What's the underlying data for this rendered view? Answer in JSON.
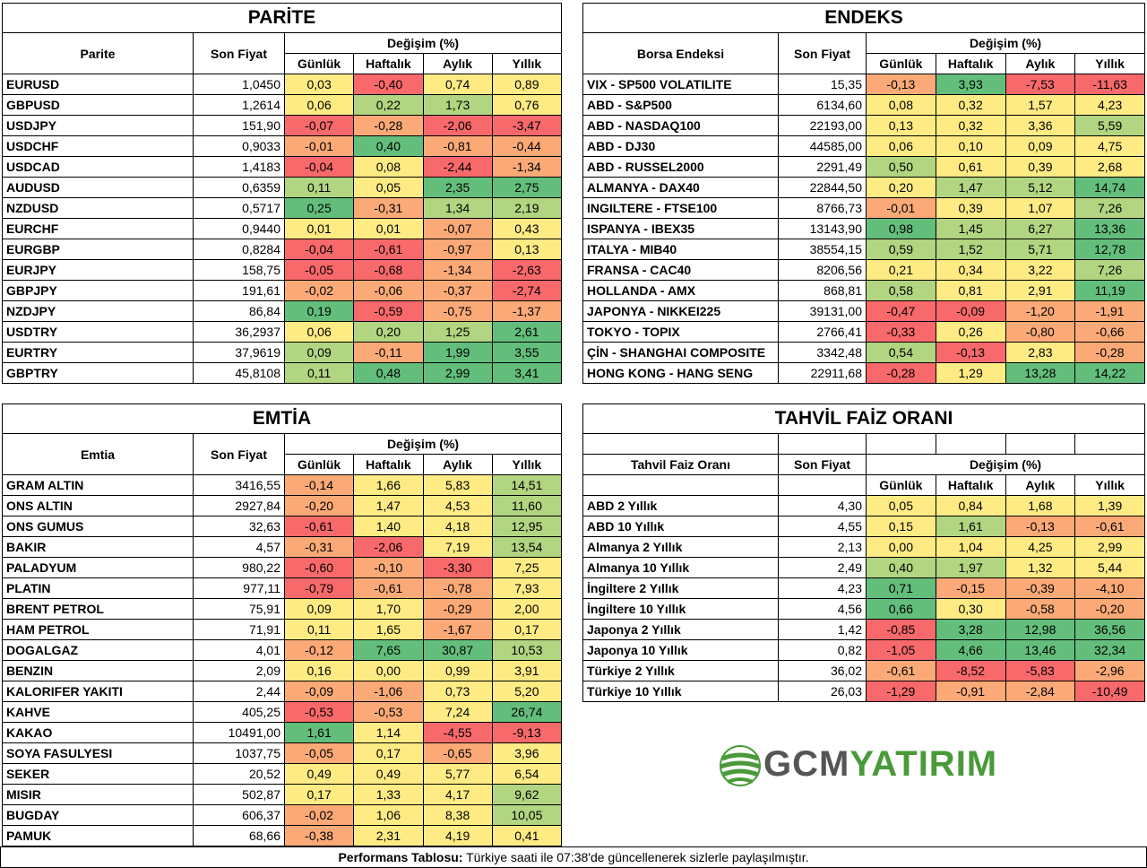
{
  "parite": {
    "title": "PARİTE",
    "col_name": "Parite",
    "col_price": "Son Fiyat",
    "col_change": "Değişim (%)",
    "sub": [
      "Günlük",
      "Haftalık",
      "Aylık",
      "Yıllık"
    ],
    "rows": [
      {
        "name": "EURUSD",
        "price": "1,0450",
        "vals": [
          "0,03",
          "-0,40",
          "0,74",
          "0,89"
        ]
      },
      {
        "name": "GBPUSD",
        "price": "1,2614",
        "vals": [
          "0,06",
          "0,22",
          "1,73",
          "0,76"
        ]
      },
      {
        "name": "USDJPY",
        "price": "151,90",
        "vals": [
          "-0,07",
          "-0,28",
          "-2,06",
          "-3,47"
        ]
      },
      {
        "name": "USDCHF",
        "price": "0,9033",
        "vals": [
          "-0,01",
          "0,40",
          "-0,81",
          "-0,44"
        ]
      },
      {
        "name": "USDCAD",
        "price": "1,4183",
        "vals": [
          "-0,04",
          "0,08",
          "-2,44",
          "-1,34"
        ]
      },
      {
        "name": "AUDUSD",
        "price": "0,6359",
        "vals": [
          "0,11",
          "0,05",
          "2,35",
          "2,75"
        ]
      },
      {
        "name": "NZDUSD",
        "price": "0,5717",
        "vals": [
          "0,25",
          "-0,31",
          "1,34",
          "2,19"
        ]
      },
      {
        "name": "EURCHF",
        "price": "0,9440",
        "vals": [
          "0,01",
          "0,01",
          "-0,07",
          "0,43"
        ]
      },
      {
        "name": "EURGBP",
        "price": "0,8284",
        "vals": [
          "-0,04",
          "-0,61",
          "-0,97",
          "0,13"
        ]
      },
      {
        "name": "EURJPY",
        "price": "158,75",
        "vals": [
          "-0,05",
          "-0,68",
          "-1,34",
          "-2,63"
        ]
      },
      {
        "name": "GBPJPY",
        "price": "191,61",
        "vals": [
          "-0,02",
          "-0,06",
          "-0,37",
          "-2,74"
        ]
      },
      {
        "name": "NZDJPY",
        "price": "86,84",
        "vals": [
          "0,19",
          "-0,59",
          "-0,75",
          "-1,37"
        ]
      },
      {
        "name": "USDTRY",
        "price": "36,2937",
        "vals": [
          "0,06",
          "0,20",
          "1,25",
          "2,61"
        ]
      },
      {
        "name": "EURTRY",
        "price": "37,9619",
        "vals": [
          "0,09",
          "-0,11",
          "1,99",
          "3,55"
        ]
      },
      {
        "name": "GBPTRY",
        "price": "45,8108",
        "vals": [
          "0,11",
          "0,48",
          "2,99",
          "3,41"
        ]
      }
    ]
  },
  "endeks": {
    "title": "ENDEKS",
    "col_name": "Borsa Endeksi",
    "col_price": "Son Fiyat",
    "col_change": "Değişim (%)",
    "sub": [
      "Günlük",
      "Haftalık",
      "Aylık",
      "Yıllık"
    ],
    "rows": [
      {
        "name": "VIX  - SP500 VOLATILITE",
        "price": "15,35",
        "vals": [
          "-0,13",
          "3,93",
          "-7,53",
          "-11,63"
        ]
      },
      {
        "name": "ABD - S&P500",
        "price": "6134,60",
        "vals": [
          "0,08",
          "0,32",
          "1,57",
          "4,23"
        ]
      },
      {
        "name": "ABD - NASDAQ100",
        "price": "22193,00",
        "vals": [
          "0,13",
          "0,32",
          "3,36",
          "5,59"
        ]
      },
      {
        "name": "ABD - DJ30",
        "price": "44585,00",
        "vals": [
          "0,06",
          "0,10",
          "0,09",
          "4,75"
        ]
      },
      {
        "name": "ABD - RUSSEL2000",
        "price": "2291,49",
        "vals": [
          "0,50",
          "0,61",
          "0,39",
          "2,68"
        ]
      },
      {
        "name": "ALMANYA - DAX40",
        "price": "22844,50",
        "vals": [
          "0,20",
          "1,47",
          "5,12",
          "14,74"
        ]
      },
      {
        "name": "INGILTERE - FTSE100",
        "price": "8766,73",
        "vals": [
          "-0,01",
          "0,39",
          "1,07",
          "7,26"
        ]
      },
      {
        "name": "ISPANYA - IBEX35",
        "price": "13143,90",
        "vals": [
          "0,98",
          "1,45",
          "6,27",
          "13,36"
        ]
      },
      {
        "name": "ITALYA - MIB40",
        "price": "38554,15",
        "vals": [
          "0,59",
          "1,52",
          "5,71",
          "12,78"
        ]
      },
      {
        "name": "FRANSA - CAC40",
        "price": "8206,56",
        "vals": [
          "0,21",
          "0,34",
          "3,22",
          "7,26"
        ]
      },
      {
        "name": "HOLLANDA - AMX",
        "price": "868,81",
        "vals": [
          "0,58",
          "0,81",
          "2,91",
          "11,19"
        ]
      },
      {
        "name": "JAPONYA - NIKKEI225",
        "price": "39131,00",
        "vals": [
          "-0,47",
          "-0,09",
          "-1,20",
          "-1,91"
        ]
      },
      {
        "name": "TOKYO - TOPIX",
        "price": "2766,41",
        "vals": [
          "-0,33",
          "0,26",
          "-0,80",
          "-0,66"
        ]
      },
      {
        "name": "ÇİN - SHANGHAI COMPOSITE",
        "price": "3342,48",
        "vals": [
          "0,54",
          "-0,13",
          "2,83",
          "-0,28"
        ]
      },
      {
        "name": "HONG KONG - HANG SENG",
        "price": "22911,68",
        "vals": [
          "-0,28",
          "1,29",
          "13,28",
          "14,22"
        ]
      }
    ]
  },
  "emtia": {
    "title": "EMTİA",
    "col_name": "Emtia",
    "col_price": "Son Fiyat",
    "col_change": "Değişim (%)",
    "sub": [
      "Günlük",
      "Haftalık",
      "Aylık",
      "Yıllık"
    ],
    "rows": [
      {
        "name": "GRAM ALTIN",
        "price": "3416,55",
        "vals": [
          "-0,14",
          "1,66",
          "5,83",
          "14,51"
        ]
      },
      {
        "name": "ONS ALTIN",
        "price": "2927,84",
        "vals": [
          "-0,20",
          "1,47",
          "4,53",
          "11,60"
        ]
      },
      {
        "name": "ONS GUMUS",
        "price": "32,63",
        "vals": [
          "-0,61",
          "1,40",
          "4,18",
          "12,95"
        ]
      },
      {
        "name": "BAKIR",
        "price": "4,57",
        "vals": [
          "-0,31",
          "-2,06",
          "7,19",
          "13,54"
        ]
      },
      {
        "name": "PALADYUM",
        "price": "980,22",
        "vals": [
          "-0,60",
          "-0,10",
          "-3,30",
          "7,25"
        ]
      },
      {
        "name": "PLATIN",
        "price": "977,11",
        "vals": [
          "-0,79",
          "-0,61",
          "-0,78",
          "7,93"
        ]
      },
      {
        "name": "BRENT PETROL",
        "price": "75,91",
        "vals": [
          "0,09",
          "1,70",
          "-0,29",
          "2,00"
        ]
      },
      {
        "name": "HAM PETROL",
        "price": "71,91",
        "vals": [
          "0,11",
          "1,65",
          "-1,67",
          "0,17"
        ]
      },
      {
        "name": "DOGALGAZ",
        "price": "4,01",
        "vals": [
          "-0,12",
          "7,65",
          "30,87",
          "10,53"
        ]
      },
      {
        "name": "BENZIN",
        "price": "2,09",
        "vals": [
          "0,16",
          "0,00",
          "0,99",
          "3,91"
        ]
      },
      {
        "name": "KALORIFER YAKITI",
        "price": "2,44",
        "vals": [
          "-0,09",
          "-1,06",
          "0,73",
          "5,20"
        ]
      },
      {
        "name": "KAHVE",
        "price": "405,25",
        "vals": [
          "-0,53",
          "-0,53",
          "7,24",
          "26,74"
        ]
      },
      {
        "name": "KAKAO",
        "price": "10491,00",
        "vals": [
          "1,61",
          "1,14",
          "-4,55",
          "-9,13"
        ]
      },
      {
        "name": "SOYA FASULYESI",
        "price": "1037,75",
        "vals": [
          "-0,05",
          "0,17",
          "-0,65",
          "3,96"
        ]
      },
      {
        "name": "SEKER",
        "price": "20,52",
        "vals": [
          "0,49",
          "0,49",
          "5,77",
          "6,54"
        ]
      },
      {
        "name": "MISIR",
        "price": "502,87",
        "vals": [
          "0,17",
          "1,33",
          "4,17",
          "9,62"
        ]
      },
      {
        "name": "BUGDAY",
        "price": "606,37",
        "vals": [
          "-0,02",
          "1,06",
          "8,38",
          "10,05"
        ]
      },
      {
        "name": "PAMUK",
        "price": "68,66",
        "vals": [
          "-0,38",
          "2,31",
          "4,19",
          "0,41"
        ]
      }
    ]
  },
  "tahvil": {
    "title": "TAHVİL FAİZ ORANI",
    "col_name": "Tahvil Faiz Oranı",
    "col_price": "Son Fiyat",
    "col_change": "Değişim (%)",
    "sub": [
      "Günlük",
      "Haftalık",
      "Aylık",
      "Yıllık"
    ],
    "rows": [
      {
        "name": "ABD 2 Yıllık",
        "price": "4,30",
        "vals": [
          "0,05",
          "0,84",
          "1,68",
          "1,39"
        ]
      },
      {
        "name": "ABD 10 Yıllık",
        "price": "4,55",
        "vals": [
          "0,15",
          "1,61",
          "-0,13",
          "-0,61"
        ]
      },
      {
        "name": "Almanya 2 Yıllık",
        "price": "2,13",
        "vals": [
          "0,00",
          "1,04",
          "4,25",
          "2,99"
        ]
      },
      {
        "name": "Almanya 10 Yıllık",
        "price": "2,49",
        "vals": [
          "0,40",
          "1,97",
          "1,32",
          "5,44"
        ]
      },
      {
        "name": "İngiltere 2 Yıllık",
        "price": "4,23",
        "vals": [
          "0,71",
          "-0,15",
          "-0,39",
          "-4,10"
        ]
      },
      {
        "name": "İngiltere 10 Yıllık",
        "price": "4,56",
        "vals": [
          "0,66",
          "0,30",
          "-0,58",
          "-0,20"
        ]
      },
      {
        "name": "Japonya 2 Yıllık",
        "price": "1,42",
        "vals": [
          "-0,85",
          "3,28",
          "12,98",
          "36,56"
        ]
      },
      {
        "name": "Japonya 10 Yıllık",
        "price": "0,82",
        "vals": [
          "-1,05",
          "4,66",
          "13,46",
          "32,34"
        ]
      },
      {
        "name": "Türkiye 2 Yıllık",
        "price": "36,02",
        "vals": [
          "-0,61",
          "-8,52",
          "-5,83",
          "-2,96"
        ]
      },
      {
        "name": "Türkiye 10 Yıllık",
        "price": "26,03",
        "vals": [
          "-1,29",
          "-0,91",
          "-2,84",
          "-10,49"
        ]
      }
    ]
  },
  "logo": {
    "part1": "GCM",
    "part2": "YATIRIM"
  },
  "footer": {
    "bold": "Performans Tablosu:",
    "text": " Türkiye saati ile 07:38'de güncellenerek sizlerle paylaşılmıştır."
  },
  "colors": {
    "red": "#f8696b",
    "orange": "#fbaa77",
    "yellow": "#ffeb84",
    "lightgreen": "#b1d580",
    "green": "#63be7b"
  }
}
